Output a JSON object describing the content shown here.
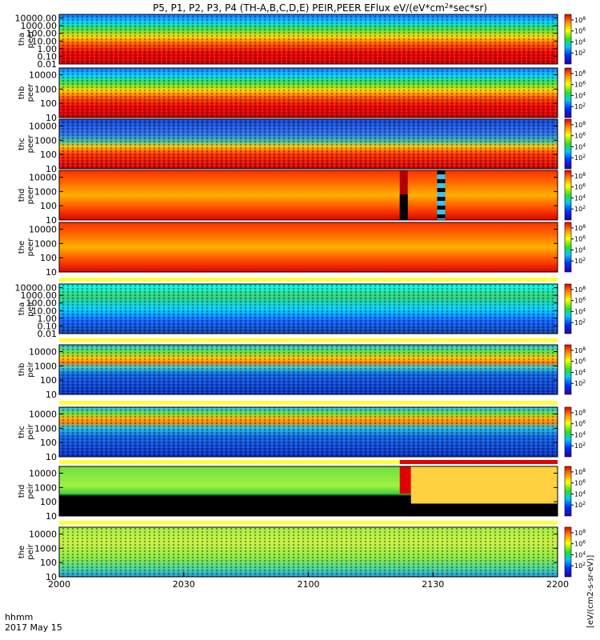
{
  "chart_data": {
    "type": "heatmap",
    "title": "P5, P1, P2, P3, P4 (TH-A,B,C,D,E) PEIR,PEER EFlux eV/(eV*cm^2*sec*sr)",
    "x_label_row1": "hhmm",
    "x_label_row2": "2017 May 15",
    "x_ticks": [
      "2000",
      "2030",
      "2100",
      "2130",
      "2200"
    ],
    "x_range_minutes": [
      0,
      120
    ],
    "colorbar_unit": "[eV/(cm2-s-sr-eV)]",
    "colorbar_ticks": [
      "10^2",
      "10^4",
      "10^6",
      "10^8"
    ],
    "panels": [
      {
        "probe": "tha",
        "species": "peer",
        "ylim": [
          0.01,
          30000
        ],
        "yticks": [
          "10000.00",
          "1000.00",
          "100.00",
          "10.00",
          "1.00",
          "0.10",
          "0.01"
        ],
        "dominant": "hot-low",
        "marker": ""
      },
      {
        "probe": "thb",
        "species": "peer",
        "ylim": [
          10,
          30000
        ],
        "yticks": [
          "10000",
          "1000",
          "100",
          "10"
        ],
        "dominant": "hot-low",
        "marker": ""
      },
      {
        "probe": "thc",
        "species": "peer",
        "ylim": [
          10,
          30000
        ],
        "yticks": [
          "10000",
          "1000",
          "100",
          "10"
        ],
        "dominant": "hot-low-noisy",
        "marker": ""
      },
      {
        "probe": "thd",
        "species": "peer",
        "ylim": [
          10,
          30000
        ],
        "yticks": [
          "10000",
          "1000",
          "100",
          "10"
        ],
        "dominant": "hot-mid",
        "marker": "gaps at 2122 and 2131"
      },
      {
        "probe": "the",
        "species": "peer",
        "ylim": [
          10,
          30000
        ],
        "yticks": [
          "10000",
          "1000",
          "100",
          "10"
        ],
        "dominant": "hot-mid",
        "marker": ""
      },
      {
        "probe": "tha",
        "species": "peir",
        "ylim": [
          0.01,
          30000
        ],
        "yticks": [
          "10000.00",
          "1000.00",
          "100.00",
          "10.00",
          "1.00",
          "0.10",
          "0.01"
        ],
        "dominant": "cool-noise",
        "marker": ""
      },
      {
        "probe": "thb",
        "species": "peir",
        "ylim": [
          10,
          30000
        ],
        "yticks": [
          "10000",
          "1000",
          "100",
          "10"
        ],
        "dominant": "band-1000",
        "marker": ""
      },
      {
        "probe": "thc",
        "species": "peir",
        "ylim": [
          10,
          30000
        ],
        "yticks": [
          "10000",
          "1000",
          "100",
          "10"
        ],
        "dominant": "band-2000",
        "marker": ""
      },
      {
        "probe": "thd",
        "species": "peir",
        "ylim": [
          10,
          30000
        ],
        "yticks": [
          "10000",
          "1000",
          "100",
          "10"
        ],
        "dominant": "green-black",
        "marker": "red bar from 2122"
      },
      {
        "probe": "the",
        "species": "peir",
        "ylim": [
          10,
          30000
        ],
        "yticks": [
          "10000",
          "1000",
          "100",
          "10"
        ],
        "dominant": "green-yellow",
        "marker": ""
      }
    ]
  }
}
